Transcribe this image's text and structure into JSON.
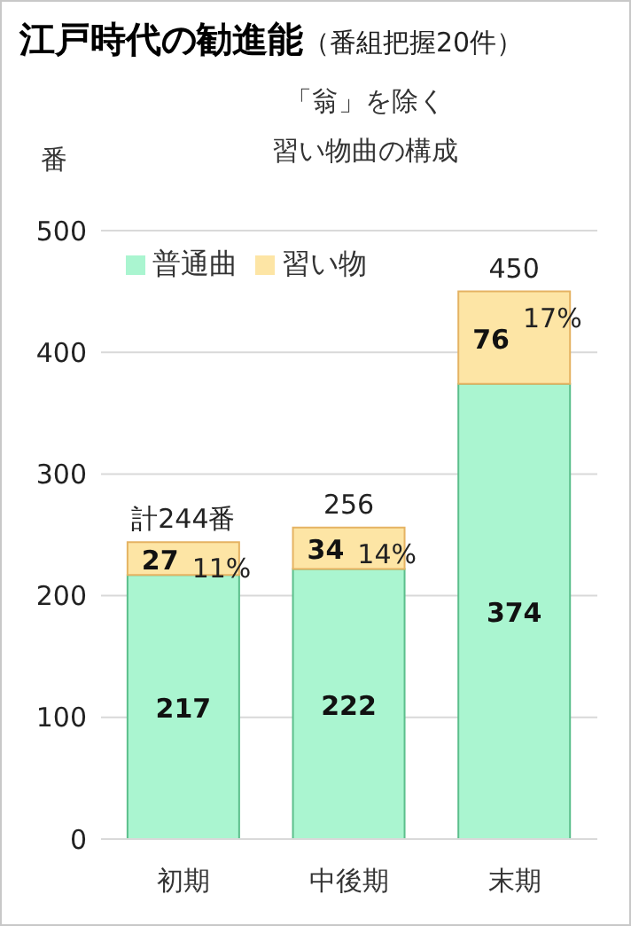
{
  "chart_data": {
    "type": "bar",
    "title": "江戸時代の勧進能",
    "subtitle": "（番組把握20件）",
    "annotations": [
      "「翁」を除く",
      "習い物曲の構成",
      {
        "text": "11%",
        "x": "初期",
        "y": 244
      },
      {
        "text": "14%",
        "x": "中後期",
        "y": 256
      },
      {
        "text": "17%",
        "x": "末期",
        "y": 450
      }
    ],
    "ylabel": "番",
    "categories": [
      "初期",
      "中後期",
      "末期"
    ],
    "stacked": true,
    "series": [
      {
        "name": "普通曲",
        "color": "#aaf5d0",
        "values": [
          217,
          222,
          374
        ]
      },
      {
        "name": "習い物",
        "color": "#fde5a5",
        "values": [
          27,
          34,
          76
        ]
      }
    ],
    "totals": [
      "計244番",
      "256",
      "450"
    ],
    "data_labels": true,
    "ylim": [
      0,
      500
    ],
    "yticks": [
      0,
      100,
      200,
      300,
      400,
      500
    ],
    "grid": "y",
    "legend": "top left"
  }
}
